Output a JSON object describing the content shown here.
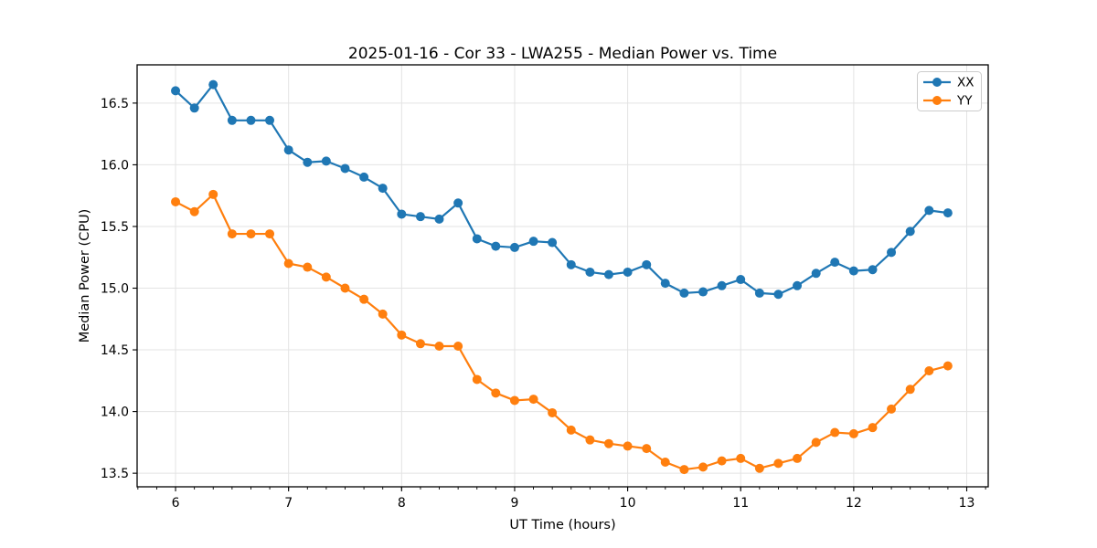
{
  "chart_data": {
    "type": "line",
    "title": "2025-01-16 - Cor 33 - LWA255 - Median Power vs. Time",
    "xlabel": "UT Time (hours)",
    "ylabel": "Median Power (CPU)",
    "xlim": [
      5.66,
      13.19
    ],
    "ylim": [
      13.39,
      16.81
    ],
    "xticks": [
      6,
      7,
      8,
      9,
      10,
      11,
      12,
      13
    ],
    "yticks": [
      13.5,
      14.0,
      14.5,
      15.0,
      15.5,
      16.0,
      16.5
    ],
    "minor_xtick_step": 0.166667,
    "grid": true,
    "marker": "circle",
    "legend": {
      "position": "upper right",
      "entries": [
        "XX",
        "YY"
      ]
    },
    "x": [
      6.0,
      6.167,
      6.333,
      6.5,
      6.667,
      6.833,
      7.0,
      7.167,
      7.333,
      7.5,
      7.667,
      7.833,
      8.0,
      8.167,
      8.333,
      8.5,
      8.667,
      8.833,
      9.0,
      9.167,
      9.333,
      9.5,
      9.667,
      9.833,
      10.0,
      10.167,
      10.333,
      10.5,
      10.667,
      10.833,
      11.0,
      11.167,
      11.333,
      11.5,
      11.667,
      11.833,
      12.0,
      12.167,
      12.333,
      12.5,
      12.667,
      12.833
    ],
    "series": [
      {
        "name": "XX",
        "color": "#1f77b4",
        "values": [
          16.6,
          16.46,
          16.65,
          16.36,
          16.36,
          16.36,
          16.12,
          16.02,
          16.03,
          15.97,
          15.9,
          15.81,
          15.6,
          15.58,
          15.56,
          15.69,
          15.4,
          15.34,
          15.33,
          15.38,
          15.37,
          15.19,
          15.13,
          15.11,
          15.13,
          15.19,
          15.04,
          14.96,
          14.97,
          15.02,
          15.07,
          14.96,
          14.95,
          15.02,
          15.12,
          15.21,
          15.14,
          15.15,
          15.29,
          15.46,
          15.63,
          15.61
        ]
      },
      {
        "name": "YY",
        "color": "#ff7f0e",
        "values": [
          15.7,
          15.62,
          15.76,
          15.44,
          15.44,
          15.44,
          15.2,
          15.17,
          15.09,
          15.0,
          14.91,
          14.79,
          14.62,
          14.55,
          14.53,
          14.53,
          14.26,
          14.15,
          14.09,
          14.1,
          13.99,
          13.85,
          13.77,
          13.74,
          13.72,
          13.7,
          13.59,
          13.53,
          13.55,
          13.6,
          13.62,
          13.54,
          13.58,
          13.62,
          13.75,
          13.83,
          13.82,
          13.87,
          14.02,
          14.18,
          14.33,
          14.37
        ]
      }
    ],
    "colors": {
      "grid": "#e3e3e3",
      "spine": "#000000",
      "background": "#ffffff"
    }
  }
}
